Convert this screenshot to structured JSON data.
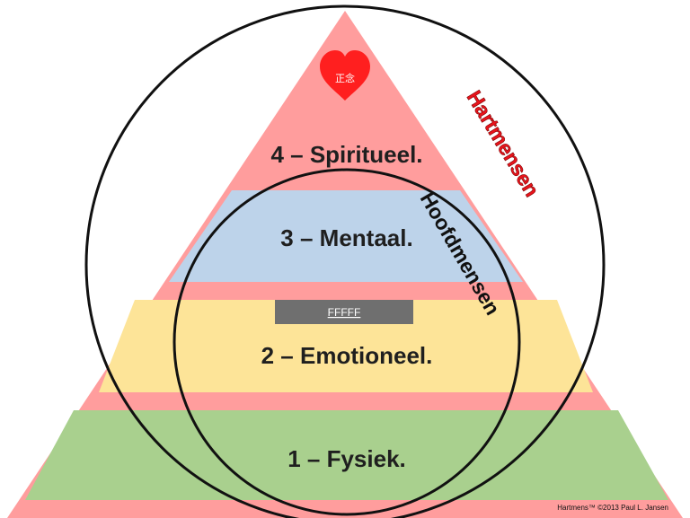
{
  "levels": [
    {
      "label": "4 – Spiritueel.",
      "color": "#ff9d9d"
    },
    {
      "label": "3 – Mentaal.",
      "color": "#bdd3ea"
    },
    {
      "label": "2 – Emotioneel.",
      "color": "#fde498"
    },
    {
      "label": "1 – Fysiek.",
      "color": "#a9d08e"
    }
  ],
  "pyramid_color": "#ff9d9d",
  "heart": {
    "text": "正念",
    "color": "#ff1f1f"
  },
  "outer_circle_label": "Hartmensen",
  "inner_circle_label": "Hoofdmensen",
  "badge": {
    "text": "FFFFF",
    "color": "#6f6f6f"
  },
  "copyright": "Hartmens™ ©2013 Paul L. Jansen"
}
